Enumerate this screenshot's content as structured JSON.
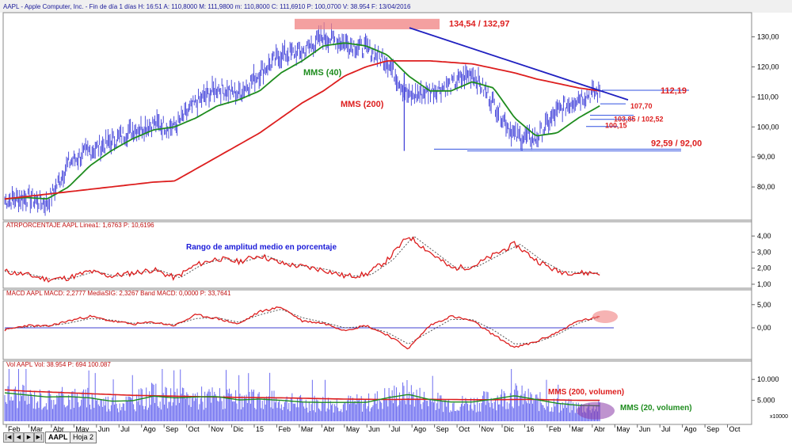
{
  "header": {
    "title": "AAPL - Apple Computer, Inc. - Fin de día 1 días H: 16:51 A: 110,8000 M: 111,9800 m: 110,8000 C: 111,6910 P: 100,0700 V: 38.954 F: 13/04/2016"
  },
  "tabs": [
    {
      "label": "AAPL"
    },
    {
      "label": "Hoja 2"
    }
  ],
  "x_axis": {
    "labels": [
      "Feb",
      "Mar",
      "Abr",
      "May",
      "Jun",
      "Jul",
      "Ago",
      "Sep",
      "Oct",
      "Nov",
      "Dic",
      "15",
      "Feb",
      "Mar",
      "Abr",
      "May",
      "Jun",
      "Jul",
      "Ago",
      "Sep",
      "Oct",
      "Nov",
      "Dic",
      "16",
      "Feb",
      "Mar",
      "Abr",
      "May",
      "Jun",
      "Jul",
      "Ago",
      "Sep",
      "Oct"
    ]
  },
  "colors": {
    "price": "#3c3cd8",
    "mms40": "#1e8c1e",
    "mms200": "#dd1e1e",
    "trendline": "#2020c0",
    "level": "#3050e0",
    "highlight_zone": "#f08080",
    "volume_ellipse": "#8a3aa8",
    "macd": "#dd1e1e",
    "signal": "#555555",
    "zero_line": "#4040d0"
  },
  "chart_data": [
    {
      "panel": "price",
      "type": "line",
      "x_start": "2014-02",
      "x_end": "2016-04-13",
      "ylim": [
        70,
        137
      ],
      "yticks": [
        "80,00",
        "90,00",
        "100,00",
        "110,00",
        "120,00",
        "130,00"
      ],
      "ytick_values": [
        80,
        90,
        100,
        110,
        120,
        130
      ],
      "close_monthly": [
        75.5,
        76.5,
        74.5,
        88,
        92,
        95,
        99,
        101,
        100,
        108,
        113,
        111,
        118,
        124,
        125,
        130,
        128,
        126,
        122,
        110,
        112,
        114,
        118,
        108,
        97,
        96,
        105,
        110,
        111.7
      ],
      "mms40_monthly": [
        76,
        76.5,
        76,
        80,
        87,
        92,
        96,
        99,
        100,
        103,
        107,
        109,
        112,
        118,
        122,
        127,
        128,
        127,
        124,
        117,
        112,
        112,
        115,
        113,
        103,
        97,
        98,
        103,
        107
      ],
      "mms200_monthly": [
        null,
        null,
        null,
        null,
        null,
        null,
        null,
        null,
        82,
        86,
        90,
        94,
        98,
        103,
        108,
        112,
        117,
        120,
        122,
        122,
        122,
        121.5,
        121,
        119.5,
        118,
        116,
        114.5,
        113,
        112
      ],
      "annotations": [
        {
          "text": "134,54 / 132,97",
          "value": 134.54
        },
        {
          "text": "112,19",
          "value": 112.19
        },
        {
          "text": "107,70",
          "value": 107.7
        },
        {
          "text": "103,85 / 102,52",
          "value": 103.85
        },
        {
          "text": "100,15",
          "value": 100.15
        },
        {
          "text": "92,59 / 92,00",
          "value": 92.59
        }
      ],
      "labels": {
        "mms40": "MMS (40)",
        "mms200": "MMS (200)"
      }
    },
    {
      "panel": "atr_percent",
      "type": "line",
      "title": "ATRPORCENTAJE AAPL Linea1: 1,6763 P: 10,6196",
      "annotation": "Rango de amplitud medio en porcentaje",
      "ylim": [
        0.9,
        4.3
      ],
      "yticks": [
        "1,00",
        "2,00",
        "3,00",
        "4,00"
      ],
      "ytick_values": [
        1,
        2,
        3,
        4
      ],
      "values_monthly": [
        1.8,
        1.6,
        1.3,
        1.4,
        1.8,
        1.5,
        1.7,
        1.9,
        1.4,
        2.2,
        2.6,
        2.4,
        2.8,
        2.3,
        2.1,
        1.9,
        1.5,
        1.6,
        2.5,
        4.0,
        3.0,
        2.0,
        2.1,
        2.8,
        3.5,
        2.5,
        1.8,
        1.7,
        1.7
      ]
    },
    {
      "panel": "macd",
      "type": "line",
      "title": "MACD AAPL MACD: 2,2777 MediaSIG: 2,3267 Band MACD: 0,0000 P: 33,7641",
      "ylim": [
        -6.5,
        6.5
      ],
      "yticks": [
        "5,00",
        "0,00"
      ],
      "ytick_values": [
        5,
        0
      ],
      "macd_monthly": [
        -0.5,
        0.5,
        0.3,
        1.5,
        2.5,
        1.5,
        0.8,
        1.2,
        0.5,
        2.8,
        2.0,
        0.8,
        3.5,
        4.5,
        1.5,
        1.0,
        -0.5,
        0.5,
        -1.5,
        -4.5,
        0.5,
        2.5,
        1.5,
        -1.5,
        -4.3,
        -3,
        -1,
        1.5,
        2.3
      ],
      "signal_monthly": [
        -0.3,
        0.2,
        0.4,
        1.0,
        2.0,
        1.7,
        1.0,
        1.0,
        0.7,
        2.0,
        2.2,
        1.2,
        2.8,
        4.0,
        2.2,
        1.2,
        0.0,
        0.3,
        -1.0,
        -3.5,
        -0.8,
        1.8,
        1.8,
        -0.5,
        -3.5,
        -3.2,
        -1.5,
        1.0,
        2.3
      ]
    },
    {
      "panel": "volume",
      "type": "bar",
      "title": "Vol AAPL Vol: 38.954 P: 694 100.087",
      "ylim": [
        0,
        12500
      ],
      "yticks": [
        "5.000",
        "10.000"
      ],
      "ytick_values": [
        5000,
        10000
      ],
      "extra_label": "x10000",
      "volume_monthly": [
        7000,
        6000,
        5500,
        6000,
        5500,
        4500,
        5000,
        6500,
        5500,
        6000,
        6000,
        5000,
        5500,
        5000,
        4500,
        4500,
        4500,
        4500,
        6000,
        7000,
        5000,
        4500,
        4500,
        5500,
        6500,
        5000,
        4000,
        3500,
        3500
      ],
      "mms20_monthly": [
        6800,
        6300,
        5800,
        5900,
        5600,
        4800,
        4900,
        6000,
        5600,
        5800,
        5900,
        5100,
        5300,
        5000,
        4600,
        4500,
        4500,
        4500,
        5600,
        6400,
        5200,
        4600,
        4600,
        5300,
        6100,
        5200,
        4300,
        3800,
        3700
      ],
      "mms200_monthly": [
        7500,
        7200,
        7000,
        6800,
        6600,
        6400,
        6200,
        6100,
        6000,
        5900,
        5800,
        5700,
        5650,
        5600,
        5500,
        5400,
        5300,
        5250,
        5200,
        5250,
        5250,
        5200,
        5150,
        5150,
        5200,
        5200,
        5100,
        5000,
        5000
      ],
      "labels": {
        "mms200": "MMS (200, volumen)",
        "mms20": "MMS (20, volumen)"
      }
    }
  ]
}
